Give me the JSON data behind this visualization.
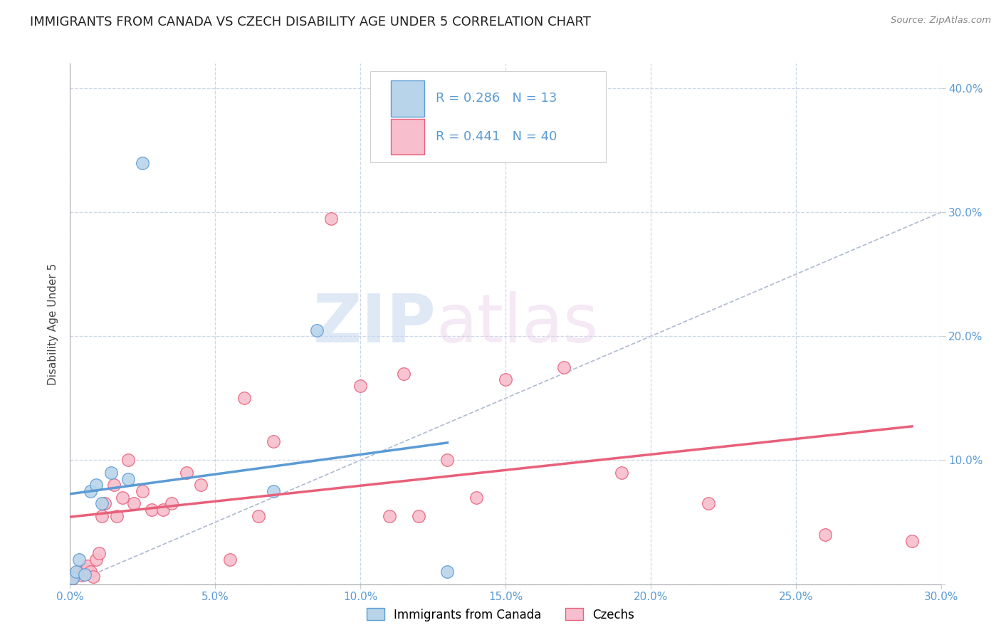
{
  "title": "IMMIGRANTS FROM CANADA VS CZECH DISABILITY AGE UNDER 5 CORRELATION CHART",
  "source": "Source: ZipAtlas.com",
  "ylabel": "Disability Age Under 5",
  "xlim": [
    0.0,
    0.3
  ],
  "ylim": [
    0.0,
    0.42
  ],
  "xticks": [
    0.0,
    0.05,
    0.1,
    0.15,
    0.2,
    0.25,
    0.3
  ],
  "yticks": [
    0.0,
    0.1,
    0.2,
    0.3,
    0.4
  ],
  "ytick_labels_right": [
    "",
    "10.0%",
    "20.0%",
    "30.0%",
    "40.0%"
  ],
  "xtick_labels": [
    "0.0%",
    "5.0%",
    "10.0%",
    "15.0%",
    "20.0%",
    "25.0%",
    "30.0%"
  ],
  "canada_R": 0.286,
  "canada_N": 13,
  "czech_R": 0.441,
  "czech_N": 40,
  "canada_color": "#b8d4ea",
  "czech_color": "#f7bece",
  "canada_line_color": "#5b9bd5",
  "czech_line_color": "#e8607a",
  "diagonal_color": "#b0bcd0",
  "watermark_zip": "ZIP",
  "watermark_atlas": "atlas",
  "canada_x": [
    0.001,
    0.002,
    0.003,
    0.005,
    0.007,
    0.009,
    0.011,
    0.014,
    0.02,
    0.025,
    0.07,
    0.085,
    0.13
  ],
  "canada_y": [
    0.005,
    0.01,
    0.02,
    0.008,
    0.075,
    0.08,
    0.065,
    0.09,
    0.085,
    0.34,
    0.075,
    0.205,
    0.01
  ],
  "czech_x": [
    0.001,
    0.002,
    0.003,
    0.004,
    0.005,
    0.006,
    0.007,
    0.008,
    0.009,
    0.01,
    0.011,
    0.012,
    0.015,
    0.016,
    0.018,
    0.02,
    0.022,
    0.025,
    0.028,
    0.032,
    0.035,
    0.04,
    0.045,
    0.055,
    0.06,
    0.065,
    0.07,
    0.09,
    0.1,
    0.11,
    0.115,
    0.12,
    0.13,
    0.14,
    0.15,
    0.17,
    0.19,
    0.22,
    0.26,
    0.29
  ],
  "czech_y": [
    0.005,
    0.008,
    0.01,
    0.007,
    0.012,
    0.015,
    0.01,
    0.006,
    0.02,
    0.025,
    0.055,
    0.065,
    0.08,
    0.055,
    0.07,
    0.1,
    0.065,
    0.075,
    0.06,
    0.06,
    0.065,
    0.09,
    0.08,
    0.02,
    0.15,
    0.055,
    0.115,
    0.295,
    0.16,
    0.055,
    0.17,
    0.055,
    0.1,
    0.07,
    0.165,
    0.175,
    0.09,
    0.065,
    0.04,
    0.035
  ],
  "background_color": "#ffffff",
  "grid_color": "#ccd6e8",
  "title_fontsize": 13,
  "label_fontsize": 11,
  "tick_fontsize": 11,
  "legend_fontsize": 12
}
